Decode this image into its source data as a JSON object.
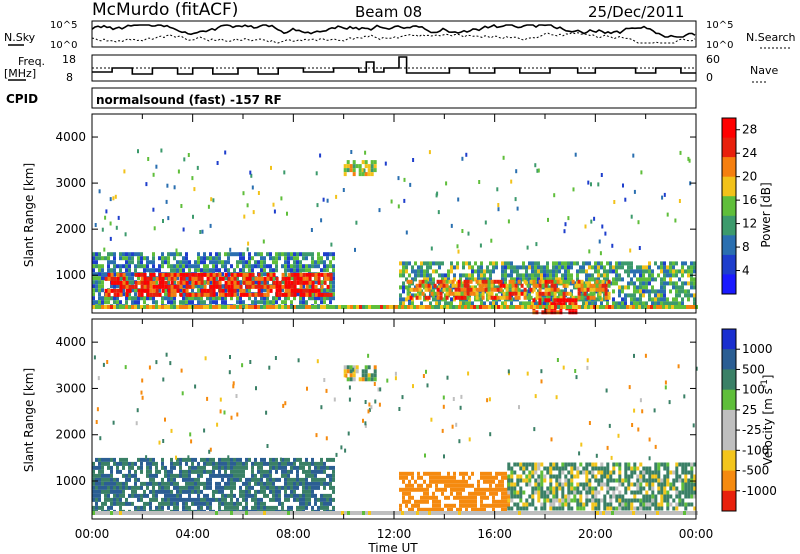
{
  "header": {
    "station": "McMurdo (fitACF)",
    "beam": "Beam 08",
    "date": "25/Dec/2011"
  },
  "top_strip": {
    "nsky_label": "N.Sky",
    "nsky_ticks": [
      "10^5",
      "10^0"
    ],
    "nsearch_label": "N.Search",
    "nsearch_ticks": [
      "10^5",
      "10^0"
    ],
    "freq_label_line1": "Freq.",
    "freq_label_line2": "[MHz]",
    "freq_ticks": [
      "18",
      "8"
    ],
    "nave_label": "Nave",
    "nave_ticks": [
      "60",
      "0"
    ],
    "cpid_label": "CPID",
    "cpid_text": "normalsound (fast) -157 RF"
  },
  "colors": {
    "power_scale": [
      "#1a1aff",
      "#1e3ecc",
      "#2a6fb0",
      "#3c9a6c",
      "#5fbe3a",
      "#f2c21a",
      "#f57f0f",
      "#e8200c",
      "#ff0000"
    ],
    "velocity_scale": [
      "#1a2fcf",
      "#2b5e93",
      "#3a8066",
      "#5fbe3a",
      "#bfbfbf",
      "#bfbfbf",
      "#f3c51c",
      "#f58a0f",
      "#e8200c"
    ]
  },
  "chart_data": [
    {
      "type": "heatmap",
      "name": "power",
      "xlabel": "",
      "ylabel": "Slant Range [km]",
      "xlim": [
        0,
        24
      ],
      "ylim": [
        180,
        4500
      ],
      "yticks": [
        1000,
        2000,
        3000,
        4000
      ],
      "colorbar": {
        "label": "Power [dB]",
        "ticks": [
          4,
          8,
          12,
          16,
          20,
          24,
          28
        ],
        "range": [
          0,
          30
        ]
      },
      "echo_regions": [
        {
          "x": [
            0.0,
            9.6
          ],
          "y": [
            300,
            1500
          ],
          "value": 10
        },
        {
          "x": [
            0.5,
            9.5
          ],
          "y": [
            550,
            1050
          ],
          "value": 26
        },
        {
          "x": [
            10.0,
            11.2
          ],
          "y": [
            3200,
            3500
          ],
          "value": 16
        },
        {
          "x": [
            12.2,
            24.0
          ],
          "y": [
            400,
            1300
          ],
          "value": 12
        },
        {
          "x": [
            12.5,
            20.5
          ],
          "y": [
            500,
            900
          ],
          "value": 21
        },
        {
          "x": [
            17.5,
            19.2
          ],
          "y": [
            200,
            500
          ],
          "value": 27
        }
      ]
    },
    {
      "type": "heatmap",
      "name": "velocity",
      "xlabel": "Time UT",
      "ylabel": "Slant Range [km]",
      "xlim": [
        0,
        24
      ],
      "ylim": [
        180,
        4500
      ],
      "xticks": [
        "00:00",
        "04:00",
        "08:00",
        "12:00",
        "16:00",
        "20:00",
        "00:00"
      ],
      "yticks": [
        1000,
        2000,
        3000,
        4000
      ],
      "colorbar": {
        "label": "Velocity [m s^-1]",
        "ticks": [
          "1000",
          "500",
          "100",
          "25",
          "-25",
          "-100",
          "-500",
          "-1000"
        ]
      },
      "echo_regions": [
        {
          "x": [
            0.0,
            9.6
          ],
          "y": [
            300,
            1500
          ],
          "value": 300
        },
        {
          "x": [
            10.0,
            11.2
          ],
          "y": [
            3200,
            3500
          ],
          "value": 0
        },
        {
          "x": [
            12.2,
            16.5
          ],
          "y": [
            400,
            1200
          ],
          "value": -300
        },
        {
          "x": [
            16.5,
            24.0
          ],
          "y": [
            400,
            1400
          ],
          "value": 100
        }
      ]
    }
  ]
}
